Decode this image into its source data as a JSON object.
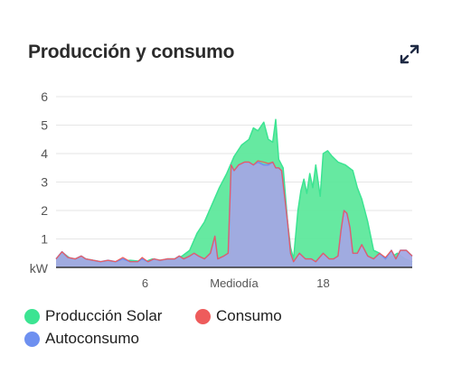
{
  "card": {
    "title": "Producción y consumo"
  },
  "icons": {
    "expand": "expand-arrows-icon"
  },
  "colors": {
    "produccion": "#3ce492",
    "consumo": "#ee5c5c",
    "autoconsumo": "#6e90f0",
    "autoconsumo_fill": "#a3a8e4",
    "produccion_fill": "#5ee89c"
  },
  "chart_data": {
    "type": "area",
    "y_unit_label": "kW",
    "ylim": [
      0,
      6
    ],
    "yticks": [
      "6",
      "5",
      "4",
      "3",
      "2",
      "1"
    ],
    "x_tick_labels": [
      {
        "hour": 6,
        "label": "6"
      },
      {
        "hour": 12,
        "label": "Mediodía"
      },
      {
        "hour": 18,
        "label": "18"
      }
    ],
    "xlim": [
      0,
      24
    ],
    "grid": true,
    "legend_position": "bottom",
    "series": [
      {
        "name": "Producción Solar",
        "points": [
          [
            0,
            0.3
          ],
          [
            0.5,
            0.5
          ],
          [
            1,
            0.3
          ],
          [
            2,
            0.3
          ],
          [
            3,
            0.2
          ],
          [
            4,
            0.2
          ],
          [
            5,
            0.25
          ],
          [
            6,
            0.2
          ],
          [
            6.5,
            0.3
          ],
          [
            7,
            0.25
          ],
          [
            8,
            0.3
          ],
          [
            8.5,
            0.4
          ],
          [
            9,
            0.6
          ],
          [
            9.5,
            1.2
          ],
          [
            10,
            1.6
          ],
          [
            10.5,
            2.2
          ],
          [
            11,
            2.8
          ],
          [
            11.5,
            3.3
          ],
          [
            12,
            3.9
          ],
          [
            12.5,
            4.3
          ],
          [
            13,
            4.5
          ],
          [
            13.3,
            4.9
          ],
          [
            13.6,
            4.8
          ],
          [
            14,
            5.1
          ],
          [
            14.3,
            4.5
          ],
          [
            14.6,
            4.4
          ],
          [
            14.8,
            5.2
          ],
          [
            15,
            3.8
          ],
          [
            15.3,
            3.5
          ],
          [
            15.6,
            1.6
          ],
          [
            15.8,
            0.7
          ],
          [
            16,
            0.3
          ],
          [
            16.3,
            2.0
          ],
          [
            16.5,
            2.7
          ],
          [
            16.7,
            3.1
          ],
          [
            16.9,
            2.6
          ],
          [
            17.1,
            3.3
          ],
          [
            17.3,
            2.8
          ],
          [
            17.5,
            3.6
          ],
          [
            17.8,
            2.5
          ],
          [
            18,
            4.0
          ],
          [
            18.3,
            4.1
          ],
          [
            18.6,
            3.9
          ],
          [
            19,
            3.7
          ],
          [
            19.5,
            3.6
          ],
          [
            20,
            3.4
          ],
          [
            20.3,
            2.8
          ],
          [
            20.6,
            2.4
          ],
          [
            21,
            1.6
          ],
          [
            21.4,
            0.6
          ],
          [
            21.8,
            0.5
          ],
          [
            22.2,
            0.3
          ],
          [
            22.7,
            0.4
          ],
          [
            23,
            0.5
          ],
          [
            23.5,
            0.3
          ],
          [
            24,
            0.2
          ]
        ]
      },
      {
        "name": "Autoconsumo",
        "points": [
          [
            0,
            0.3
          ],
          [
            0.4,
            0.55
          ],
          [
            0.8,
            0.35
          ],
          [
            1.3,
            0.3
          ],
          [
            1.7,
            0.4
          ],
          [
            2,
            0.3
          ],
          [
            2.5,
            0.25
          ],
          [
            3,
            0.2
          ],
          [
            3.5,
            0.25
          ],
          [
            4,
            0.2
          ],
          [
            4.5,
            0.3
          ],
          [
            5,
            0.2
          ],
          [
            5.5,
            0.2
          ],
          [
            5.8,
            0.3
          ],
          [
            6.2,
            0.2
          ],
          [
            6.6,
            0.3
          ],
          [
            7,
            0.25
          ],
          [
            7.5,
            0.3
          ],
          [
            8,
            0.3
          ],
          [
            8.3,
            0.4
          ],
          [
            8.6,
            0.3
          ],
          [
            9,
            0.4
          ],
          [
            9.3,
            0.5
          ],
          [
            9.6,
            0.4
          ],
          [
            10,
            0.3
          ],
          [
            10.4,
            0.5
          ],
          [
            10.7,
            1.1
          ],
          [
            10.9,
            0.3
          ],
          [
            11.3,
            0.4
          ],
          [
            11.6,
            0.5
          ],
          [
            11.8,
            3.6
          ],
          [
            12,
            3.4
          ],
          [
            12.3,
            3.6
          ],
          [
            12.7,
            3.7
          ],
          [
            13,
            3.7
          ],
          [
            13.3,
            3.6
          ],
          [
            13.6,
            3.7
          ],
          [
            14,
            3.6
          ],
          [
            14.3,
            3.6
          ],
          [
            14.6,
            3.7
          ],
          [
            14.8,
            3.5
          ],
          [
            15,
            3.5
          ],
          [
            15.2,
            3.4
          ],
          [
            15.6,
            1.6
          ],
          [
            15.8,
            0.5
          ],
          [
            16,
            0.2
          ],
          [
            16.4,
            0.5
          ],
          [
            16.8,
            0.3
          ],
          [
            17.2,
            0.3
          ],
          [
            17.5,
            0.2
          ],
          [
            18,
            0.5
          ],
          [
            18.4,
            0.3
          ],
          [
            18.7,
            0.3
          ],
          [
            19,
            0.4
          ],
          [
            19.2,
            1.3
          ],
          [
            19.4,
            2.0
          ],
          [
            19.6,
            1.9
          ],
          [
            19.8,
            1.4
          ],
          [
            20,
            0.5
          ],
          [
            20.3,
            0.5
          ],
          [
            20.6,
            0.8
          ],
          [
            21,
            0.4
          ],
          [
            21.4,
            0.3
          ],
          [
            21.8,
            0.5
          ],
          [
            22.2,
            0.3
          ],
          [
            22.6,
            0.6
          ],
          [
            22.9,
            0.3
          ],
          [
            23.2,
            0.6
          ],
          [
            23.6,
            0.6
          ],
          [
            24,
            0.4
          ]
        ]
      },
      {
        "name": "Consumo",
        "points": [
          [
            0,
            0.3
          ],
          [
            0.4,
            0.55
          ],
          [
            0.8,
            0.35
          ],
          [
            1.3,
            0.3
          ],
          [
            1.7,
            0.4
          ],
          [
            2,
            0.3
          ],
          [
            2.5,
            0.25
          ],
          [
            3,
            0.2
          ],
          [
            3.5,
            0.25
          ],
          [
            4,
            0.2
          ],
          [
            4.5,
            0.35
          ],
          [
            5,
            0.2
          ],
          [
            5.5,
            0.2
          ],
          [
            5.8,
            0.35
          ],
          [
            6.2,
            0.2
          ],
          [
            6.6,
            0.3
          ],
          [
            7,
            0.25
          ],
          [
            7.5,
            0.3
          ],
          [
            8,
            0.3
          ],
          [
            8.3,
            0.4
          ],
          [
            8.6,
            0.3
          ],
          [
            9,
            0.4
          ],
          [
            9.3,
            0.5
          ],
          [
            9.6,
            0.4
          ],
          [
            10,
            0.3
          ],
          [
            10.4,
            0.5
          ],
          [
            10.7,
            1.1
          ],
          [
            10.9,
            0.3
          ],
          [
            11.3,
            0.4
          ],
          [
            11.6,
            0.5
          ],
          [
            11.8,
            3.6
          ],
          [
            12,
            3.4
          ],
          [
            12.3,
            3.6
          ],
          [
            12.7,
            3.7
          ],
          [
            13,
            3.7
          ],
          [
            13.3,
            3.6
          ],
          [
            13.6,
            3.75
          ],
          [
            14,
            3.7
          ],
          [
            14.3,
            3.65
          ],
          [
            14.6,
            3.7
          ],
          [
            14.8,
            3.5
          ],
          [
            15,
            3.5
          ],
          [
            15.2,
            3.4
          ],
          [
            15.6,
            1.6
          ],
          [
            15.8,
            0.5
          ],
          [
            16,
            0.2
          ],
          [
            16.4,
            0.5
          ],
          [
            16.8,
            0.3
          ],
          [
            17.2,
            0.3
          ],
          [
            17.5,
            0.2
          ],
          [
            18,
            0.5
          ],
          [
            18.4,
            0.3
          ],
          [
            18.7,
            0.3
          ],
          [
            19,
            0.4
          ],
          [
            19.2,
            1.3
          ],
          [
            19.4,
            2.0
          ],
          [
            19.6,
            1.9
          ],
          [
            19.8,
            1.4
          ],
          [
            20,
            0.5
          ],
          [
            20.3,
            0.5
          ],
          [
            20.6,
            0.8
          ],
          [
            21,
            0.4
          ],
          [
            21.4,
            0.3
          ],
          [
            21.8,
            0.5
          ],
          [
            22.2,
            0.35
          ],
          [
            22.6,
            0.6
          ],
          [
            22.9,
            0.3
          ],
          [
            23.2,
            0.6
          ],
          [
            23.6,
            0.6
          ],
          [
            24,
            0.4
          ]
        ]
      }
    ]
  },
  "legend": {
    "produccion": "Producción Solar",
    "consumo": "Consumo",
    "autoconsumo": "Autoconsumo"
  }
}
